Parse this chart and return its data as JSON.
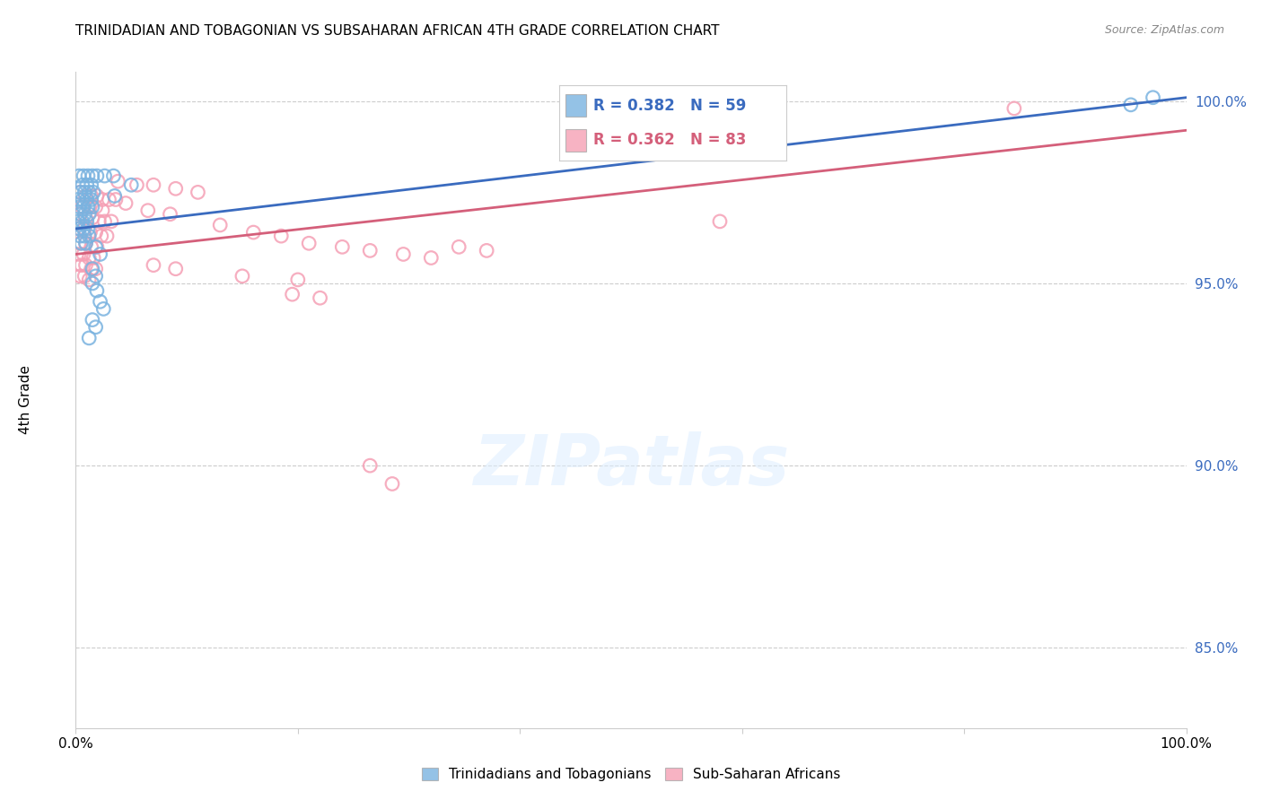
{
  "title": "TRINIDADIAN AND TOBAGONIAN VS SUBSAHARAN AFRICAN 4TH GRADE CORRELATION CHART",
  "source": "Source: ZipAtlas.com",
  "ylabel": "4th Grade",
  "x_min": 0.0,
  "x_max": 1.0,
  "y_min": 0.828,
  "y_max": 1.008,
  "y_ticks": [
    0.85,
    0.9,
    0.95,
    1.0
  ],
  "y_tick_labels": [
    "85.0%",
    "90.0%",
    "95.0%",
    "100.0%"
  ],
  "blue_color": "#7ab3e0",
  "pink_color": "#f5a0b5",
  "blue_line_color": "#3a6bbf",
  "pink_line_color": "#d45f7a",
  "legend_R_blue": "R = 0.382",
  "legend_N_blue": "N = 59",
  "legend_R_pink": "R = 0.362",
  "legend_N_pink": "N = 83",
  "background_color": "#ffffff",
  "grid_color": "#cccccc",
  "blue_scatter": [
    [
      0.003,
      0.9795
    ],
    [
      0.007,
      0.9795
    ],
    [
      0.011,
      0.9795
    ],
    [
      0.015,
      0.9795
    ],
    [
      0.019,
      0.9795
    ],
    [
      0.026,
      0.9795
    ],
    [
      0.034,
      0.9795
    ],
    [
      0.006,
      0.977
    ],
    [
      0.01,
      0.977
    ],
    [
      0.014,
      0.977
    ],
    [
      0.004,
      0.975
    ],
    [
      0.008,
      0.975
    ],
    [
      0.012,
      0.975
    ],
    [
      0.016,
      0.975
    ],
    [
      0.002,
      0.973
    ],
    [
      0.006,
      0.973
    ],
    [
      0.01,
      0.973
    ],
    [
      0.014,
      0.973
    ],
    [
      0.003,
      0.971
    ],
    [
      0.007,
      0.971
    ],
    [
      0.011,
      0.971
    ],
    [
      0.015,
      0.971
    ],
    [
      0.004,
      0.969
    ],
    [
      0.008,
      0.969
    ],
    [
      0.012,
      0.969
    ],
    [
      0.002,
      0.967
    ],
    [
      0.006,
      0.967
    ],
    [
      0.01,
      0.967
    ],
    [
      0.003,
      0.965
    ],
    [
      0.007,
      0.965
    ],
    [
      0.011,
      0.965
    ],
    [
      0.004,
      0.963
    ],
    [
      0.008,
      0.963
    ],
    [
      0.012,
      0.963
    ],
    [
      0.005,
      0.961
    ],
    [
      0.009,
      0.961
    ],
    [
      0.035,
      0.974
    ],
    [
      0.05,
      0.977
    ],
    [
      0.018,
      0.96
    ],
    [
      0.022,
      0.958
    ],
    [
      0.015,
      0.954
    ],
    [
      0.018,
      0.952
    ],
    [
      0.015,
      0.95
    ],
    [
      0.019,
      0.948
    ],
    [
      0.022,
      0.945
    ],
    [
      0.025,
      0.943
    ],
    [
      0.015,
      0.94
    ],
    [
      0.018,
      0.938
    ],
    [
      0.012,
      0.935
    ],
    [
      0.95,
      0.999
    ],
    [
      0.97,
      1.001
    ]
  ],
  "pink_scatter": [
    [
      0.004,
      0.975
    ],
    [
      0.009,
      0.974
    ],
    [
      0.014,
      0.974
    ],
    [
      0.019,
      0.974
    ],
    [
      0.024,
      0.973
    ],
    [
      0.03,
      0.973
    ],
    [
      0.036,
      0.973
    ],
    [
      0.006,
      0.971
    ],
    [
      0.012,
      0.971
    ],
    [
      0.018,
      0.971
    ],
    [
      0.024,
      0.97
    ],
    [
      0.004,
      0.969
    ],
    [
      0.009,
      0.968
    ],
    [
      0.015,
      0.968
    ],
    [
      0.021,
      0.967
    ],
    [
      0.026,
      0.967
    ],
    [
      0.032,
      0.967
    ],
    [
      0.003,
      0.965
    ],
    [
      0.008,
      0.965
    ],
    [
      0.013,
      0.964
    ],
    [
      0.018,
      0.964
    ],
    [
      0.023,
      0.963
    ],
    [
      0.028,
      0.963
    ],
    [
      0.004,
      0.961
    ],
    [
      0.009,
      0.961
    ],
    [
      0.014,
      0.96
    ],
    [
      0.019,
      0.96
    ],
    [
      0.003,
      0.958
    ],
    [
      0.007,
      0.958
    ],
    [
      0.012,
      0.957
    ],
    [
      0.016,
      0.957
    ],
    [
      0.005,
      0.955
    ],
    [
      0.009,
      0.955
    ],
    [
      0.014,
      0.954
    ],
    [
      0.018,
      0.954
    ],
    [
      0.004,
      0.952
    ],
    [
      0.008,
      0.952
    ],
    [
      0.012,
      0.951
    ],
    [
      0.038,
      0.978
    ],
    [
      0.055,
      0.977
    ],
    [
      0.07,
      0.977
    ],
    [
      0.09,
      0.976
    ],
    [
      0.11,
      0.975
    ],
    [
      0.045,
      0.972
    ],
    [
      0.065,
      0.97
    ],
    [
      0.085,
      0.969
    ],
    [
      0.13,
      0.966
    ],
    [
      0.16,
      0.964
    ],
    [
      0.185,
      0.963
    ],
    [
      0.21,
      0.961
    ],
    [
      0.24,
      0.96
    ],
    [
      0.265,
      0.959
    ],
    [
      0.295,
      0.958
    ],
    [
      0.32,
      0.957
    ],
    [
      0.345,
      0.96
    ],
    [
      0.37,
      0.959
    ],
    [
      0.07,
      0.955
    ],
    [
      0.09,
      0.954
    ],
    [
      0.15,
      0.952
    ],
    [
      0.2,
      0.951
    ],
    [
      0.195,
      0.947
    ],
    [
      0.22,
      0.946
    ],
    [
      0.58,
      0.967
    ],
    [
      0.265,
      0.9
    ],
    [
      0.285,
      0.895
    ],
    [
      0.845,
      0.998
    ]
  ],
  "blue_line_x": [
    0.0,
    1.0
  ],
  "blue_line_y": [
    0.965,
    1.001
  ],
  "pink_line_x": [
    0.0,
    1.0
  ],
  "pink_line_y": [
    0.958,
    0.992
  ]
}
